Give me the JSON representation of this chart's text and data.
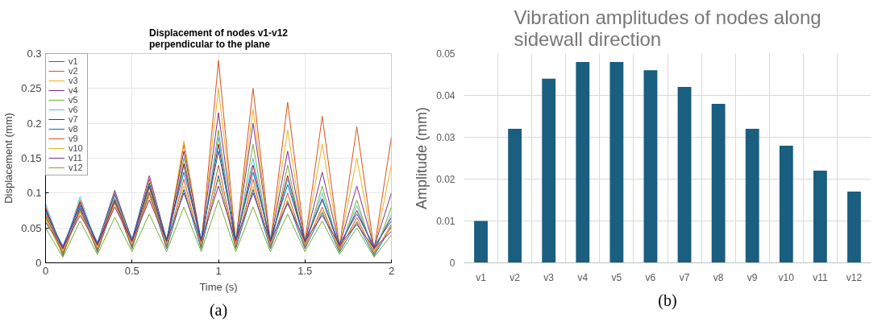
{
  "chart_data": [
    {
      "type": "line",
      "title": "Displacement of nodes v1-v12 perpendicular to the plane",
      "xlabel": "Time (s)",
      "ylabel": "Displacement (mm)",
      "annotations": [
        "(a)"
      ],
      "x": [
        0,
        0.1,
        0.2,
        0.3,
        0.4,
        0.5,
        0.6,
        0.7,
        0.8,
        0.9,
        1.0,
        1.1,
        1.2,
        1.3,
        1.4,
        1.5,
        1.6,
        1.7,
        1.8,
        1.9,
        2.0
      ],
      "xlim": [
        0,
        2
      ],
      "xticks": [
        0,
        0.5,
        1,
        1.5,
        2
      ],
      "ylim": [
        0,
        0.3
      ],
      "yticks": [
        0,
        0.05,
        0.1,
        0.15,
        0.2,
        0.25,
        0.3
      ],
      "grid": true,
      "legend": "top left",
      "line_style": "solid",
      "series": [
        {
          "name": "v1",
          "color": "#0072bd",
          "values": [
            0.076,
            0.01,
            0.081,
            0.015,
            0.088,
            0.02,
            0.1,
            0.02,
            0.105,
            0.02,
            0.125,
            0.02,
            0.105,
            0.02,
            0.088,
            0.02,
            0.072,
            0.015,
            0.058,
            0.01,
            0.052
          ]
        },
        {
          "name": "v2",
          "color": "#d95319",
          "values": [
            0.08,
            0.014,
            0.09,
            0.019,
            0.1,
            0.024,
            0.12,
            0.024,
            0.17,
            0.024,
            0.29,
            0.03,
            0.25,
            0.03,
            0.23,
            0.03,
            0.21,
            0.024,
            0.195,
            0.019,
            0.18
          ]
        },
        {
          "name": "v3",
          "color": "#edb120",
          "values": [
            0.07,
            0.018,
            0.085,
            0.023,
            0.096,
            0.028,
            0.116,
            0.028,
            0.175,
            0.028,
            0.25,
            0.032,
            0.22,
            0.032,
            0.19,
            0.028,
            0.17,
            0.024,
            0.15,
            0.018,
            0.14
          ]
        },
        {
          "name": "v4",
          "color": "#7e2f8e",
          "values": [
            0.066,
            0.022,
            0.078,
            0.027,
            0.104,
            0.032,
            0.125,
            0.032,
            0.16,
            0.032,
            0.215,
            0.03,
            0.2,
            0.03,
            0.16,
            0.03,
            0.13,
            0.025,
            0.11,
            0.022,
            0.1
          ]
        },
        {
          "name": "v5",
          "color": "#77ac30",
          "values": [
            0.062,
            0.012,
            0.074,
            0.017,
            0.092,
            0.022,
            0.108,
            0.022,
            0.15,
            0.022,
            0.19,
            0.022,
            0.17,
            0.022,
            0.14,
            0.022,
            0.11,
            0.017,
            0.09,
            0.012,
            0.08
          ]
        },
        {
          "name": "v6",
          "color": "#4dbeee",
          "values": [
            0.085,
            0.016,
            0.095,
            0.021,
            0.093,
            0.026,
            0.112,
            0.026,
            0.14,
            0.026,
            0.18,
            0.026,
            0.15,
            0.026,
            0.12,
            0.026,
            0.1,
            0.02,
            0.082,
            0.016,
            0.07
          ]
        },
        {
          "name": "v7",
          "color": "#a2142f",
          "values": [
            0.078,
            0.02,
            0.087,
            0.025,
            0.09,
            0.03,
            0.11,
            0.03,
            0.142,
            0.03,
            0.17,
            0.028,
            0.14,
            0.028,
            0.125,
            0.028,
            0.092,
            0.022,
            0.075,
            0.02,
            0.065
          ]
        },
        {
          "name": "v8",
          "color": "#0072bd",
          "values": [
            0.072,
            0.024,
            0.083,
            0.029,
            0.098,
            0.034,
            0.114,
            0.034,
            0.13,
            0.034,
            0.16,
            0.034,
            0.13,
            0.034,
            0.112,
            0.032,
            0.09,
            0.027,
            0.07,
            0.024,
            0.06
          ]
        },
        {
          "name": "v9",
          "color": "#d95319",
          "values": [
            0.068,
            0.013,
            0.076,
            0.018,
            0.086,
            0.023,
            0.102,
            0.023,
            0.12,
            0.023,
            0.14,
            0.023,
            0.12,
            0.023,
            0.1,
            0.023,
            0.08,
            0.018,
            0.065,
            0.013,
            0.055
          ]
        },
        {
          "name": "v10",
          "color": "#edb120",
          "values": [
            0.064,
            0.017,
            0.072,
            0.022,
            0.084,
            0.027,
            0.095,
            0.027,
            0.11,
            0.027,
            0.12,
            0.027,
            0.11,
            0.027,
            0.09,
            0.027,
            0.075,
            0.021,
            0.06,
            0.017,
            0.05
          ]
        },
        {
          "name": "v11",
          "color": "#7e2f8e",
          "values": [
            0.058,
            0.021,
            0.068,
            0.026,
            0.08,
            0.031,
            0.09,
            0.031,
            0.1,
            0.031,
            0.11,
            0.031,
            0.1,
            0.031,
            0.085,
            0.031,
            0.068,
            0.026,
            0.055,
            0.021,
            0.045
          ]
        },
        {
          "name": "v12",
          "color": "#77ac30",
          "values": [
            0.05,
            0.008,
            0.06,
            0.012,
            0.065,
            0.016,
            0.07,
            0.016,
            0.08,
            0.016,
            0.09,
            0.016,
            0.08,
            0.016,
            0.07,
            0.016,
            0.06,
            0.012,
            0.05,
            0.008,
            0.04
          ]
        }
      ]
    },
    {
      "type": "bar",
      "title": "Vibration amplitudes of nodes along sidewall direction",
      "ylabel": "Amplitude (mm)",
      "annotations": [
        "(b)"
      ],
      "categories": [
        "v1",
        "v2",
        "v3",
        "v4",
        "v5",
        "v6",
        "v7",
        "v8",
        "v9",
        "v10",
        "v11",
        "v12"
      ],
      "values": [
        0.01,
        0.032,
        0.044,
        0.048,
        0.048,
        0.046,
        0.042,
        0.038,
        0.032,
        0.028,
        0.022,
        0.017
      ],
      "color": "#1a5e80",
      "ylim": [
        0,
        0.05
      ],
      "yticks": [
        0,
        0.01,
        0.02,
        0.03,
        0.04,
        0.05
      ],
      "grid": true
    }
  ]
}
